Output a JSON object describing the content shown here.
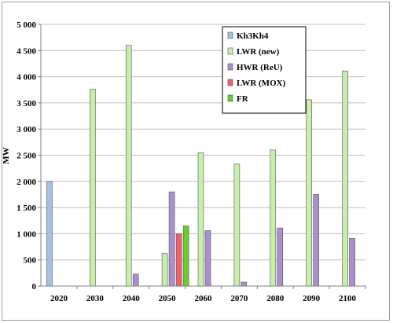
{
  "chart_data": {
    "type": "bar",
    "title": "",
    "xlabel": "",
    "ylabel": "MW",
    "ylim": [
      0,
      5000
    ],
    "yticks": [
      "0",
      "500",
      "1 000",
      "1 500",
      "2 000",
      "2 500",
      "3 000",
      "3 500",
      "4 000",
      "4 500",
      "5 000"
    ],
    "ytick_values": [
      0,
      500,
      1000,
      1500,
      2000,
      2500,
      3000,
      3500,
      4000,
      4500,
      5000
    ],
    "categories": [
      "2020",
      "2030",
      "2040",
      "2050",
      "2060",
      "2070",
      "2080",
      "2090",
      "2100"
    ],
    "grid": "horizontal",
    "legend_position": "top-right",
    "series": [
      {
        "name": "Kh3Kh4",
        "color": "#a7c0e0",
        "values": [
          2000,
          0,
          0,
          0,
          0,
          0,
          0,
          0,
          0
        ]
      },
      {
        "name": "LWR (new)",
        "color": "#c8eeaa",
        "values": [
          0,
          3760,
          4600,
          620,
          2550,
          2330,
          2600,
          3560,
          4110
        ]
      },
      {
        "name": "HWR (ReU)",
        "color": "#aa8fd0",
        "values": [
          0,
          0,
          230,
          1800,
          1060,
          75,
          1110,
          1750,
          910
        ]
      },
      {
        "name": "LWR (MOX)",
        "color": "#f06070",
        "values": [
          0,
          0,
          0,
          1000,
          0,
          0,
          0,
          0,
          0
        ]
      },
      {
        "name": "FR",
        "color": "#6ccc2c",
        "values": [
          0,
          0,
          0,
          1150,
          0,
          0,
          0,
          0,
          0
        ]
      }
    ]
  }
}
